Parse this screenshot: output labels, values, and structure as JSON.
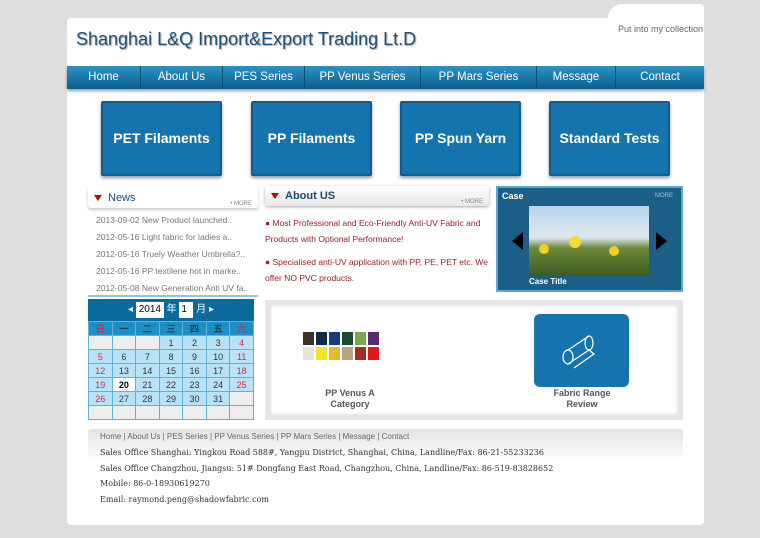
{
  "header": {
    "title": "Shanghai L&Q Import&Export Trading Lt.D",
    "collection_link": "Put into my collection"
  },
  "nav": [
    "Home",
    "About Us",
    "PES Series",
    "PP Venus Series",
    "PP Mars Series",
    "Message",
    "Contact"
  ],
  "big_buttons": [
    "PET Filaments",
    "PP Filaments",
    "PP Spun Yarn",
    "Standard Tests"
  ],
  "news": {
    "title": "News",
    "more": "• MORE",
    "items": [
      "2013-09-02 New Product launched..",
      "2012-05-16 Light fabric for ladies a..",
      "2012-05-16 Truely Weather Umbrella?..",
      "2012-05-16 PP textilene hot in marke..",
      "2012-05-08 New Generation Anti UV fa.."
    ]
  },
  "about": {
    "title": "About US",
    "more": "• MORE",
    "paragraphs": [
      "● Most Professional and Eco-Friendly Anti-UV Fabric and Products with Optional Performance!",
      "● Specialised anti-UV application with PP, PE, PET etc. We offer NO PVC products."
    ]
  },
  "case": {
    "title": "Case",
    "more": "MORE",
    "caption": "Case Title"
  },
  "calendar": {
    "year": "2014",
    "year_label": "年",
    "month": "1",
    "month_label": "月",
    "weekdays": [
      "日",
      "一",
      "二",
      "三",
      "四",
      "五",
      "六"
    ],
    "weeks": [
      [
        "",
        "",
        "",
        "1",
        "2",
        "3",
        "4"
      ],
      [
        "5",
        "6",
        "7",
        "8",
        "9",
        "10",
        "11"
      ],
      [
        "12",
        "13",
        "14",
        "15",
        "16",
        "17",
        "18"
      ],
      [
        "19",
        "20",
        "21",
        "22",
        "23",
        "24",
        "25"
      ],
      [
        "26",
        "27",
        "28",
        "29",
        "30",
        "31",
        ""
      ],
      [
        "",
        "",
        "",
        "",
        "",
        "",
        ""
      ]
    ],
    "today": "20"
  },
  "products": [
    {
      "label_line1": "PP Venus A",
      "label_line2": "Category"
    },
    {
      "label_line1": "Fabric Range",
      "label_line2": "Review"
    }
  ],
  "footer": {
    "links": "Home | About Us | PES Series | PP Venus Series | PP Mars Series | Message | Contact",
    "lines": [
      "Sales Office Shanghai: Yingkou Road 588#, Yangpu District, Shanghai, China, Landline/Fax: 86-21-55233236",
      "Sales Office Changzhou, Jiangsu: 51# Dongfang East Road, Changzhou, China, Landline/Fax:  86-519-83828652",
      "Mobile: 86-0-18930619270",
      "Email: raymond.peng@shadowfabric.com"
    ]
  },
  "colors": {
    "primary": "#1573ad",
    "accent_red": "#9c1c2c"
  }
}
